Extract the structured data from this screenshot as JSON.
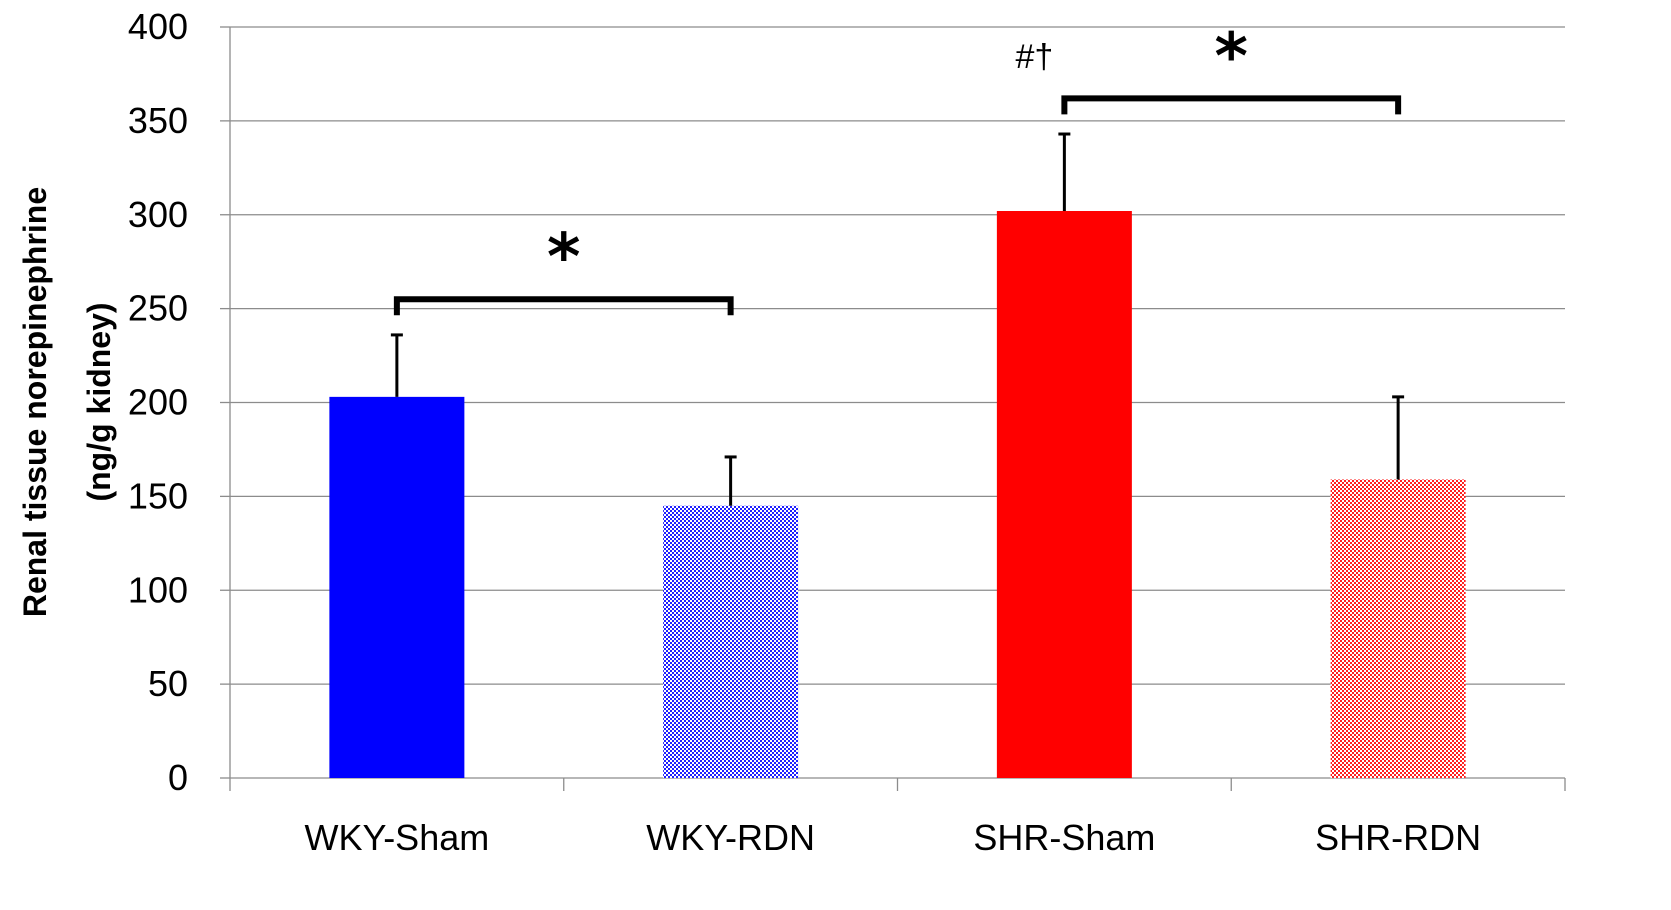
{
  "chart_data": {
    "type": "bar",
    "categories": [
      "WKY-Sham",
      "WKY-RDN",
      "SHR-Sham",
      "SHR-RDN"
    ],
    "values": [
      203,
      145,
      302,
      159
    ],
    "error_upper": [
      236,
      171,
      343,
      203
    ],
    "colors": [
      "#0000FF",
      "#3333FF",
      "#FF0000",
      "#FF3333"
    ],
    "fill_patterns": [
      "solid",
      "hatched",
      "solid",
      "hatched"
    ],
    "title": "",
    "xlabel": "",
    "ylabel_line1": "Renal tissue norepinephrine",
    "ylabel_line2": "(ng/g kidney)",
    "ylim": [
      0,
      400
    ],
    "yticks": [
      0,
      50,
      100,
      150,
      200,
      250,
      300,
      350,
      400
    ],
    "grid": true,
    "legend": "none",
    "annotations": [
      {
        "text": "*",
        "between": [
          "WKY-Sham",
          "WKY-RDN"
        ],
        "bracket_at": 255
      },
      {
        "text": "*",
        "between": [
          "SHR-Sham",
          "SHR-RDN"
        ],
        "bracket_at": 362
      },
      {
        "text": "#†",
        "near": "SHR-Sham"
      }
    ]
  }
}
